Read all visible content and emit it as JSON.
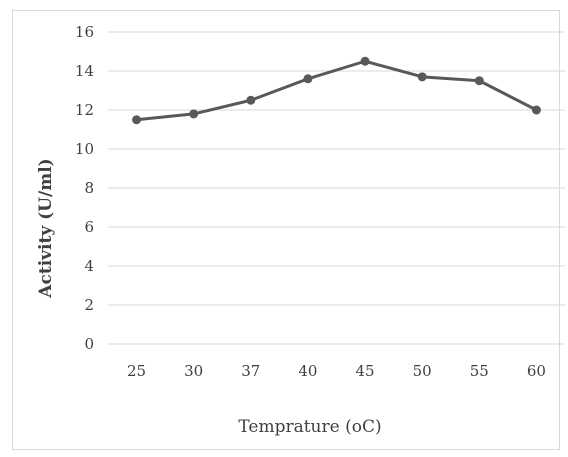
{
  "chart_data": {
    "type": "line",
    "categories": [
      "25",
      "30",
      "37",
      "40",
      "45",
      "50",
      "55",
      "60"
    ],
    "series": [
      {
        "values": [
          11.5,
          11.8,
          12.5,
          13.6,
          14.5,
          13.7,
          13.5,
          12.0
        ]
      }
    ],
    "xlabel": "Temprature (oC)",
    "ylabel": "Activity (U/ml)",
    "ylim": [
      0,
      16
    ],
    "yticks": [
      0,
      2,
      4,
      6,
      8,
      10,
      12,
      14,
      16
    ],
    "grid": true,
    "colors": {
      "line": "#595959",
      "grid": "#d9d9d9"
    }
  }
}
